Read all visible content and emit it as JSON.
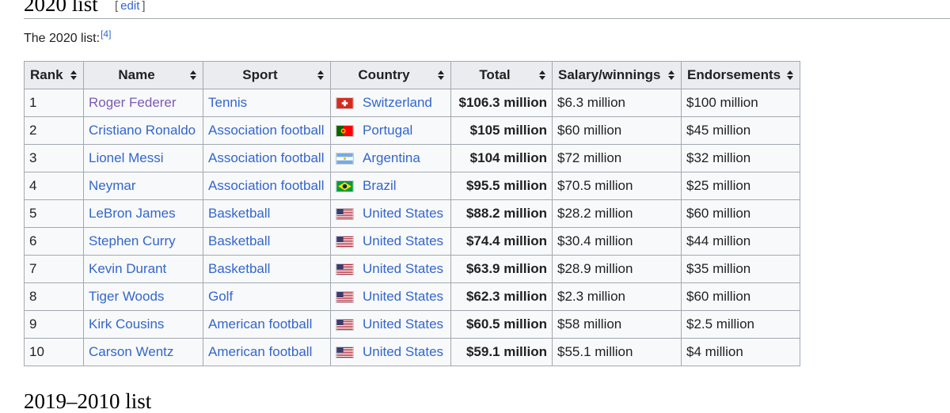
{
  "section": {
    "title": "2020 list",
    "edit_open": "[",
    "edit_label": "edit",
    "edit_close": "]",
    "intro_text": "The 2020 list:",
    "citation": "[4]"
  },
  "table": {
    "headers": [
      "Rank",
      "Name",
      "Sport",
      "Country",
      "Total",
      "Salary/winnings",
      "Endorsements"
    ],
    "rows": [
      {
        "rank": "1",
        "name": "Roger Federer",
        "sport": "Tennis",
        "flag": "switzerland-flag-icon",
        "country": "Switzerland",
        "total": "$106.3 million",
        "salary": "$6.3 million",
        "endorsements": "$100 million"
      },
      {
        "rank": "2",
        "name": "Cristiano Ronaldo",
        "sport": "Association football",
        "flag": "portugal-flag-icon",
        "country": "Portugal",
        "total": "$105 million",
        "salary": "$60 million",
        "endorsements": "$45 million"
      },
      {
        "rank": "3",
        "name": "Lionel Messi",
        "sport": "Association football",
        "flag": "argentina-flag-icon",
        "country": "Argentina",
        "total": "$104 million",
        "salary": "$72 million",
        "endorsements": "$32 million"
      },
      {
        "rank": "4",
        "name": "Neymar",
        "sport": "Association football",
        "flag": "brazil-flag-icon",
        "country": "Brazil",
        "total": "$95.5 million",
        "salary": "$70.5 million",
        "endorsements": "$25 million"
      },
      {
        "rank": "5",
        "name": "LeBron James",
        "sport": "Basketball",
        "flag": "usa-flag-icon",
        "country": "United States",
        "total": "$88.2 million",
        "salary": "$28.2 million",
        "endorsements": "$60 million"
      },
      {
        "rank": "6",
        "name": "Stephen Curry",
        "sport": "Basketball",
        "flag": "usa-flag-icon",
        "country": "United States",
        "total": "$74.4 million",
        "salary": "$30.4 million",
        "endorsements": "$44 million"
      },
      {
        "rank": "7",
        "name": "Kevin Durant",
        "sport": "Basketball",
        "flag": "usa-flag-icon",
        "country": "United States",
        "total": "$63.9 million",
        "salary": "$28.9 million",
        "endorsements": "$35 million"
      },
      {
        "rank": "8",
        "name": "Tiger Woods",
        "sport": "Golf",
        "flag": "usa-flag-icon",
        "country": "United States",
        "total": "$62.3 million",
        "salary": "$2.3 million",
        "endorsements": "$60 million"
      },
      {
        "rank": "9",
        "name": "Kirk Cousins",
        "sport": "American football",
        "flag": "usa-flag-icon",
        "country": "United States",
        "total": "$60.5 million",
        "salary": "$58 million",
        "endorsements": "$2.5 million"
      },
      {
        "rank": "10",
        "name": "Carson Wentz",
        "sport": "American football",
        "flag": "usa-flag-icon",
        "country": "United States",
        "total": "$59.1 million",
        "salary": "$55.1 million",
        "endorsements": "$4 million"
      }
    ]
  },
  "next_section": {
    "title": "2019–2010 list"
  },
  "colors": {
    "link": "#3366cc",
    "visited_link": "#795cb2",
    "header_bg": "#eaecf0",
    "cell_bg": "#f8f9fa",
    "border": "#a2a9b1"
  }
}
